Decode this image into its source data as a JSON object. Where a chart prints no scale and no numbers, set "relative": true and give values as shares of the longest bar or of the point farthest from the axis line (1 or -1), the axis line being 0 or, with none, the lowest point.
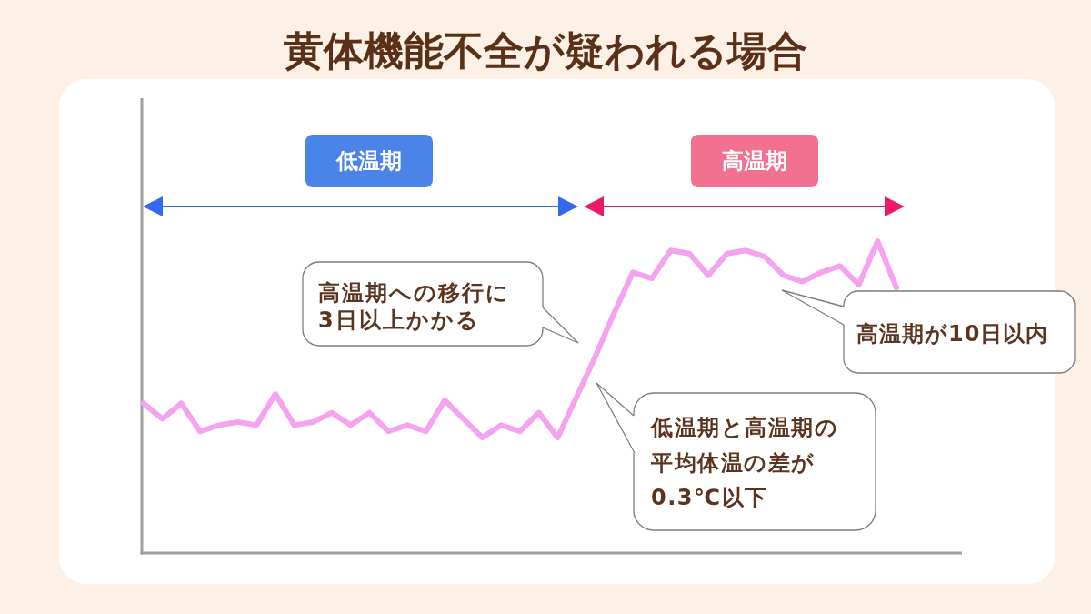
{
  "chart_data": {
    "type": "line",
    "title": "黄体機能不全が疑われる場合",
    "relative": true,
    "categories": [
      null,
      null,
      null,
      null,
      null,
      null,
      null,
      null,
      null,
      null,
      null,
      null,
      null,
      null,
      null,
      null,
      null,
      null,
      null,
      null,
      null,
      null,
      null,
      null,
      null,
      null,
      null,
      null,
      null,
      null,
      null,
      null,
      null,
      null,
      null,
      null,
      null,
      null,
      null,
      null,
      null
    ],
    "values": [
      0.48,
      0.43,
      0.48,
      0.39,
      0.41,
      0.42,
      0.41,
      0.51,
      0.41,
      0.42,
      0.45,
      0.41,
      0.45,
      0.39,
      0.41,
      0.39,
      0.49,
      0.43,
      0.37,
      0.41,
      0.39,
      0.45,
      0.37,
      0.5,
      0.63,
      0.77,
      0.9,
      0.88,
      0.97,
      0.96,
      0.89,
      0.96,
      0.97,
      0.95,
      0.89,
      0.87,
      0.9,
      0.92,
      0.86,
      1,
      0.85
    ],
    "color": "#f5a3f0",
    "annotations": [
      "低温期",
      "高温期",
      "高温期への移行に3日以上かかる",
      "高温期が10日以内",
      "低温期と高温期の平均体温の差が0.3℃以下"
    ]
  }
}
